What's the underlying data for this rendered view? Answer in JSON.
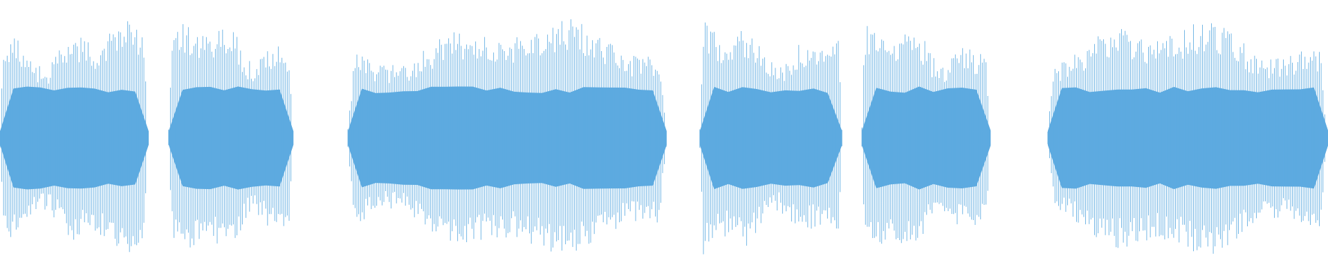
{
  "waveform": {
    "color": "#5DAAE0",
    "background": "#FFFFFF",
    "segments": [
      {
        "start_fraction": 0.0,
        "end_fraction": 0.112
      },
      {
        "start_fraction": 0.127,
        "end_fraction": 0.221
      },
      {
        "start_fraction": 0.262,
        "end_fraction": 0.502
      },
      {
        "start_fraction": 0.527,
        "end_fraction": 0.634
      },
      {
        "start_fraction": 0.649,
        "end_fraction": 0.746
      },
      {
        "start_fraction": 0.789,
        "end_fraction": 1.0
      }
    ]
  }
}
